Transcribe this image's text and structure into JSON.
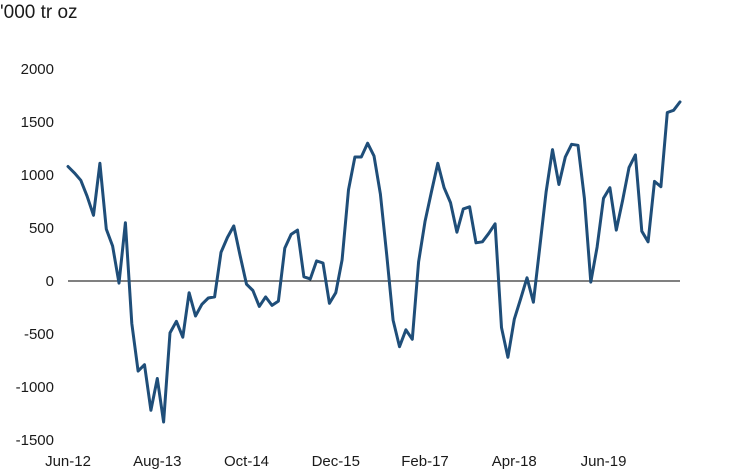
{
  "chart_data": {
    "type": "line",
    "title": "",
    "ylabel": "'000 tr oz",
    "xlabel": "",
    "ylim": [
      -1500,
      2000
    ],
    "yticks": [
      -1500,
      -1000,
      -500,
      0,
      500,
      1000,
      1500,
      2000
    ],
    "xtick_labels": [
      "Jun-12",
      "Aug-13",
      "Oct-14",
      "Dec-15",
      "Feb-17",
      "Apr-18",
      "Jun-19"
    ],
    "x_start": "2012-06",
    "x_frequency": "monthly",
    "grid": false,
    "legend": "none",
    "color": "#1f4e79",
    "series": [
      {
        "values": [
          1080,
          1020,
          950,
          800,
          620,
          1110,
          490,
          330,
          -20,
          550,
          -400,
          -850,
          -790,
          -1220,
          -920,
          -1330,
          -490,
          -380,
          -530,
          -110,
          -330,
          -220,
          -160,
          -150,
          270,
          410,
          520,
          240,
          -30,
          -90,
          -240,
          -150,
          -230,
          -190,
          310,
          440,
          480,
          40,
          20,
          190,
          170,
          -210,
          -110,
          200,
          860,
          1170,
          1170,
          1300,
          1180,
          820,
          240,
          -370,
          -620,
          -460,
          -550,
          180,
          560,
          840,
          1110,
          880,
          740,
          460,
          680,
          700,
          360,
          370,
          450,
          540,
          -440,
          -720,
          -360,
          -170,
          30,
          -200,
          320,
          840,
          1240,
          910,
          1170,
          1290,
          1280,
          780,
          -10,
          320,
          780,
          880,
          480,
          760,
          1070,
          1190,
          470,
          370,
          940,
          890,
          1590,
          1610,
          1690
        ]
      }
    ]
  }
}
